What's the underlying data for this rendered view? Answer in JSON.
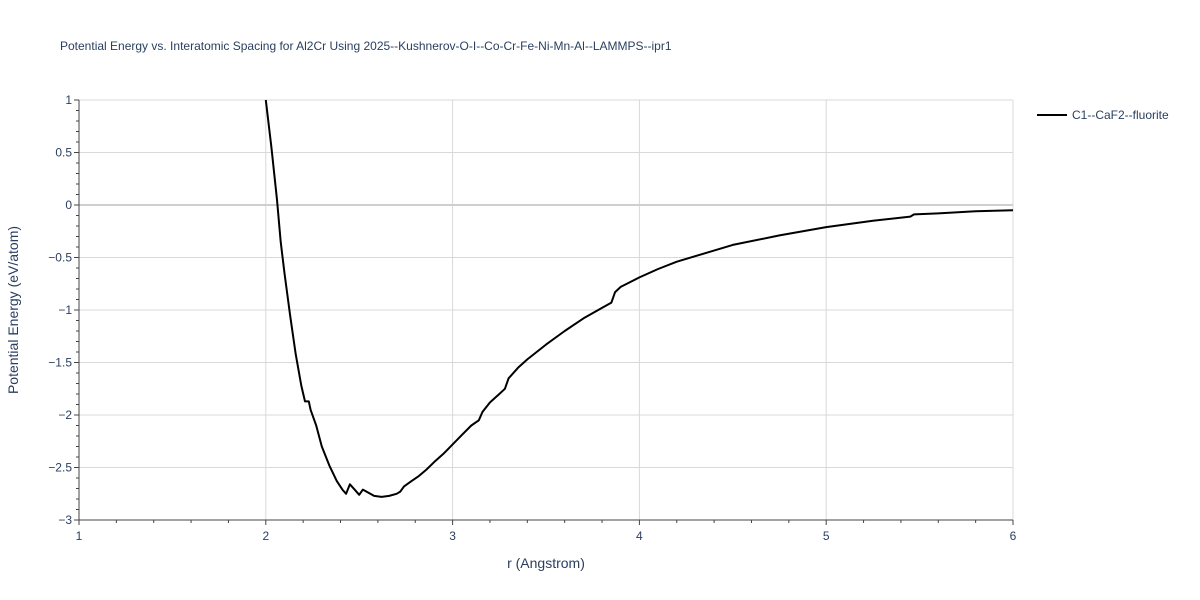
{
  "chart_data": {
    "type": "line",
    "title": "Potential Energy vs. Interatomic Spacing for Al2Cr Using 2025--Kushnerov-O-I--Co-Cr-Fe-Ni-Mn-Al--LAMMPS--ipr1",
    "xlabel": "r (Angstrom)",
    "ylabel": "Potential Energy (eV/atom)",
    "xlim": [
      1,
      6
    ],
    "ylim": [
      -3,
      1
    ],
    "x_ticks": [
      "1",
      "2",
      "3",
      "4",
      "5",
      "6"
    ],
    "y_ticks": [
      "1",
      "0.5",
      "0",
      "−0.5",
      "−1",
      "−1.5",
      "−2",
      "−2.5",
      "−3"
    ],
    "grid": true,
    "legend_position": "top-right",
    "series": [
      {
        "name": "C1--CaF2--fluorite",
        "color": "#000000",
        "x": [
          2.0,
          2.03,
          2.06,
          2.08,
          2.1,
          2.13,
          2.16,
          2.19,
          2.21,
          2.23,
          2.24,
          2.27,
          2.3,
          2.34,
          2.38,
          2.41,
          2.43,
          2.45,
          2.48,
          2.5,
          2.52,
          2.55,
          2.58,
          2.62,
          2.66,
          2.7,
          2.72,
          2.74,
          2.78,
          2.82,
          2.86,
          2.9,
          2.95,
          3.0,
          3.05,
          3.1,
          3.14,
          3.16,
          3.2,
          3.25,
          3.28,
          3.3,
          3.35,
          3.4,
          3.5,
          3.6,
          3.7,
          3.8,
          3.85,
          3.87,
          3.9,
          4.0,
          4.1,
          4.2,
          4.35,
          4.5,
          4.75,
          5.0,
          5.25,
          5.45,
          5.47,
          5.6,
          5.8,
          6.0
        ],
        "values": [
          1.0,
          0.55,
          0.05,
          -0.35,
          -0.65,
          -1.05,
          -1.42,
          -1.72,
          -1.87,
          -1.87,
          -1.95,
          -2.1,
          -2.3,
          -2.48,
          -2.63,
          -2.71,
          -2.75,
          -2.66,
          -2.72,
          -2.76,
          -2.71,
          -2.74,
          -2.77,
          -2.78,
          -2.77,
          -2.75,
          -2.73,
          -2.68,
          -2.63,
          -2.58,
          -2.52,
          -2.45,
          -2.37,
          -2.28,
          -2.19,
          -2.1,
          -2.05,
          -1.97,
          -1.88,
          -1.8,
          -1.75,
          -1.65,
          -1.55,
          -1.47,
          -1.33,
          -1.2,
          -1.08,
          -0.98,
          -0.93,
          -0.83,
          -0.78,
          -0.69,
          -0.61,
          -0.54,
          -0.46,
          -0.38,
          -0.29,
          -0.21,
          -0.15,
          -0.11,
          -0.09,
          -0.08,
          -0.06,
          -0.05
        ]
      }
    ]
  }
}
